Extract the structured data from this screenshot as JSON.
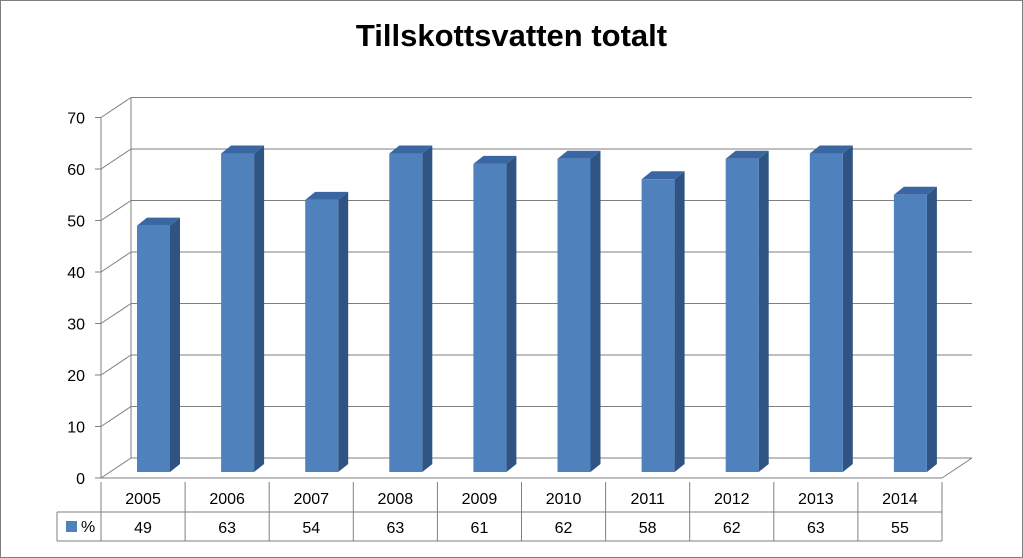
{
  "chart_data": {
    "type": "bar",
    "title": "Tillskottsvatten totalt",
    "categories": [
      "2005",
      "2006",
      "2007",
      "2008",
      "2009",
      "2010",
      "2011",
      "2012",
      "2013",
      "2014"
    ],
    "series": [
      {
        "name": "%",
        "values": [
          49,
          63,
          54,
          63,
          61,
          62,
          58,
          62,
          63,
          55
        ],
        "color": "#4f81bd"
      }
    ],
    "ylim": [
      0,
      70
    ],
    "yticks": [
      0,
      10,
      20,
      30,
      40,
      50,
      60,
      70
    ],
    "grid": true,
    "style": "3d-column",
    "data_table": true
  }
}
